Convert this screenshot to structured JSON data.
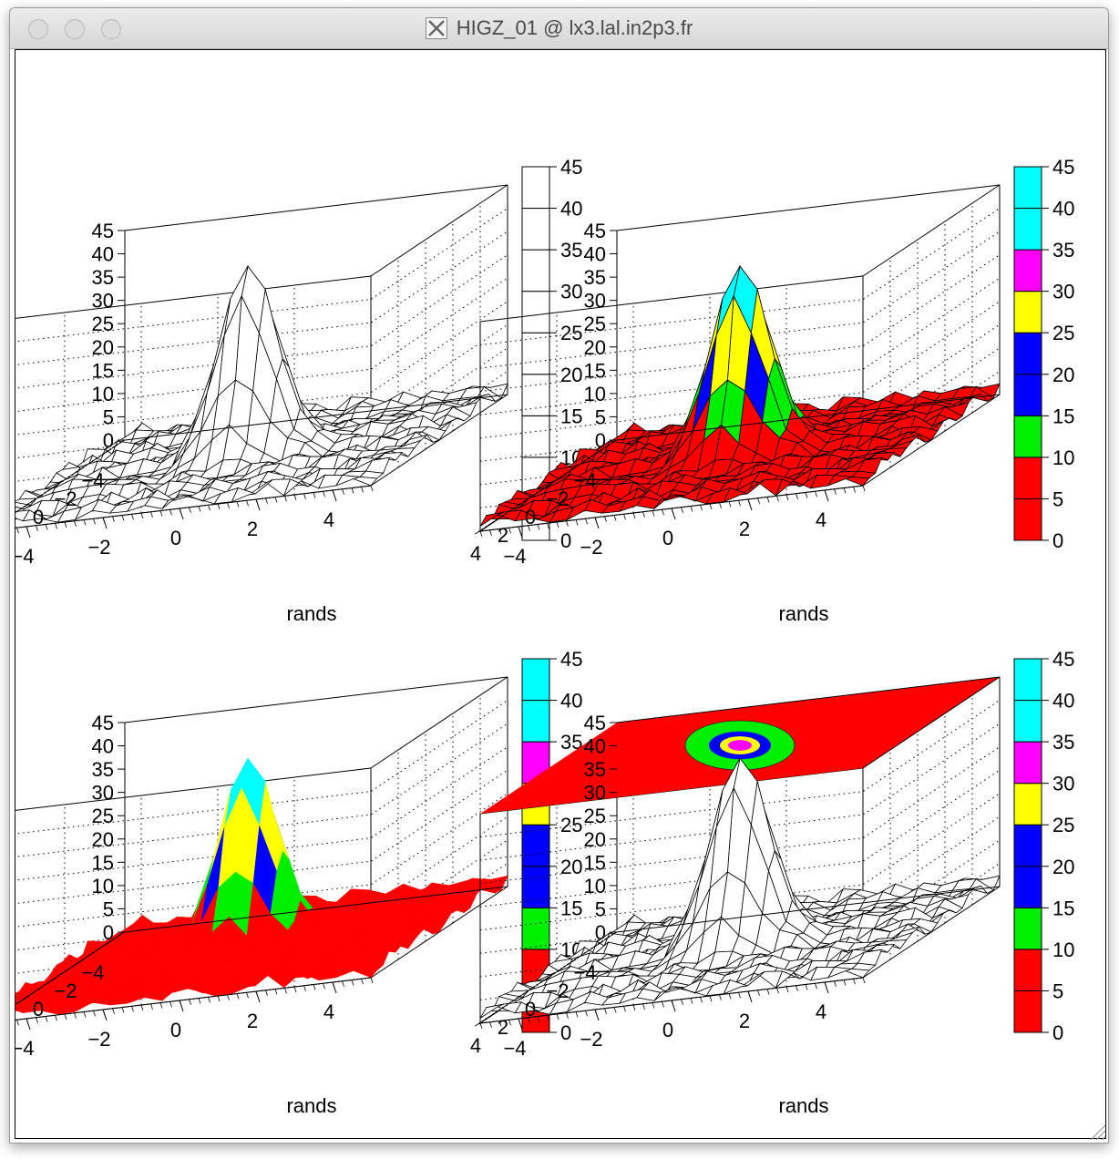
{
  "window": {
    "title": "HIGZ_01 @ lx3.lal.in2p3.fr",
    "title_icon": "x11-icon",
    "traffic_lights": [
      "close",
      "minimize",
      "zoom"
    ]
  },
  "chart_data": [
    {
      "type": "surface",
      "style": "wireframe",
      "xlabel": "rands",
      "x_ticks": [
        "−4",
        "−2",
        "0",
        "2",
        "4"
      ],
      "y_ticks": [
        "−4",
        "−2",
        "0",
        "2",
        "4"
      ],
      "z_ticks": [
        "0",
        "5",
        "10",
        "15",
        "20",
        "25",
        "30",
        "35",
        "40",
        "45"
      ],
      "xlim": [
        -5,
        5
      ],
      "ylim": [
        -5,
        5
      ],
      "zlim": [
        0,
        45
      ],
      "peak": {
        "x": 0,
        "y": 0,
        "z": 41
      },
      "colorbar": {
        "ticks": [
          "0",
          "5",
          "10",
          "15",
          "20",
          "25",
          "30",
          "35",
          "40",
          "45"
        ],
        "colors": [
          "#ffffff",
          "#ffffff",
          "#ffffff",
          "#ffffff",
          "#ffffff",
          "#ffffff",
          "#ffffff",
          "#ffffff",
          "#ffffff"
        ]
      }
    },
    {
      "type": "surface",
      "style": "colored-mesh",
      "xlabel": "rands",
      "x_ticks": [
        "−4",
        "−2",
        "0",
        "2",
        "4"
      ],
      "y_ticks": [
        "−4",
        "−2",
        "0",
        "2",
        "4"
      ],
      "z_ticks": [
        "0",
        "5",
        "10",
        "15",
        "20",
        "25",
        "30",
        "35",
        "40",
        "45"
      ],
      "xlim": [
        -5,
        5
      ],
      "ylim": [
        -5,
        5
      ],
      "zlim": [
        0,
        45
      ],
      "peak": {
        "x": 0,
        "y": 0,
        "z": 41
      },
      "colorbar": {
        "ticks": [
          "0",
          "5",
          "10",
          "15",
          "20",
          "25",
          "30",
          "35",
          "40",
          "45"
        ],
        "colors": [
          "#ff0000",
          "#ff0000",
          "#00ee00",
          "#0000ff",
          "#0000ff",
          "#ffff00",
          "#ff00ff",
          "#00ffff",
          "#00ffff"
        ]
      }
    },
    {
      "type": "surface",
      "style": "filled",
      "xlabel": "rands",
      "x_ticks": [
        "−4",
        "−2",
        "0",
        "2",
        "4"
      ],
      "y_ticks": [
        "−4",
        "−2",
        "0",
        "2",
        "4"
      ],
      "z_ticks": [
        "0",
        "5",
        "10",
        "15",
        "20",
        "25",
        "30",
        "35",
        "40",
        "45"
      ],
      "xlim": [
        -5,
        5
      ],
      "ylim": [
        -5,
        5
      ],
      "zlim": [
        0,
        45
      ],
      "peak": {
        "x": 0,
        "y": 0,
        "z": 41
      },
      "colorbar": {
        "ticks": [
          "0",
          "5",
          "10",
          "15",
          "20",
          "25",
          "30",
          "35",
          "40",
          "45"
        ],
        "colors": [
          "#ff0000",
          "#ff0000",
          "#00ee00",
          "#0000ff",
          "#0000ff",
          "#ffff00",
          "#ff00ff",
          "#00ffff",
          "#00ffff"
        ]
      }
    },
    {
      "type": "surface",
      "style": "wireframe-with-top-contour",
      "xlabel": "rands",
      "x_ticks": [
        "−4",
        "−2",
        "0",
        "2",
        "4"
      ],
      "y_ticks": [
        "−4",
        "−2",
        "0",
        "2",
        "4"
      ],
      "z_ticks": [
        "0",
        "5",
        "10",
        "15",
        "20",
        "25",
        "30",
        "35",
        "40",
        "45"
      ],
      "xlim": [
        -5,
        5
      ],
      "ylim": [
        -5,
        5
      ],
      "zlim": [
        0,
        45
      ],
      "peak": {
        "x": 0,
        "y": 0,
        "z": 41
      },
      "colorbar": {
        "ticks": [
          "0",
          "5",
          "10",
          "15",
          "20",
          "25",
          "30",
          "35",
          "40",
          "45"
        ],
        "colors": [
          "#ff0000",
          "#ff0000",
          "#00ee00",
          "#0000ff",
          "#0000ff",
          "#ffff00",
          "#ff00ff",
          "#00ffff",
          "#00ffff"
        ]
      }
    }
  ]
}
